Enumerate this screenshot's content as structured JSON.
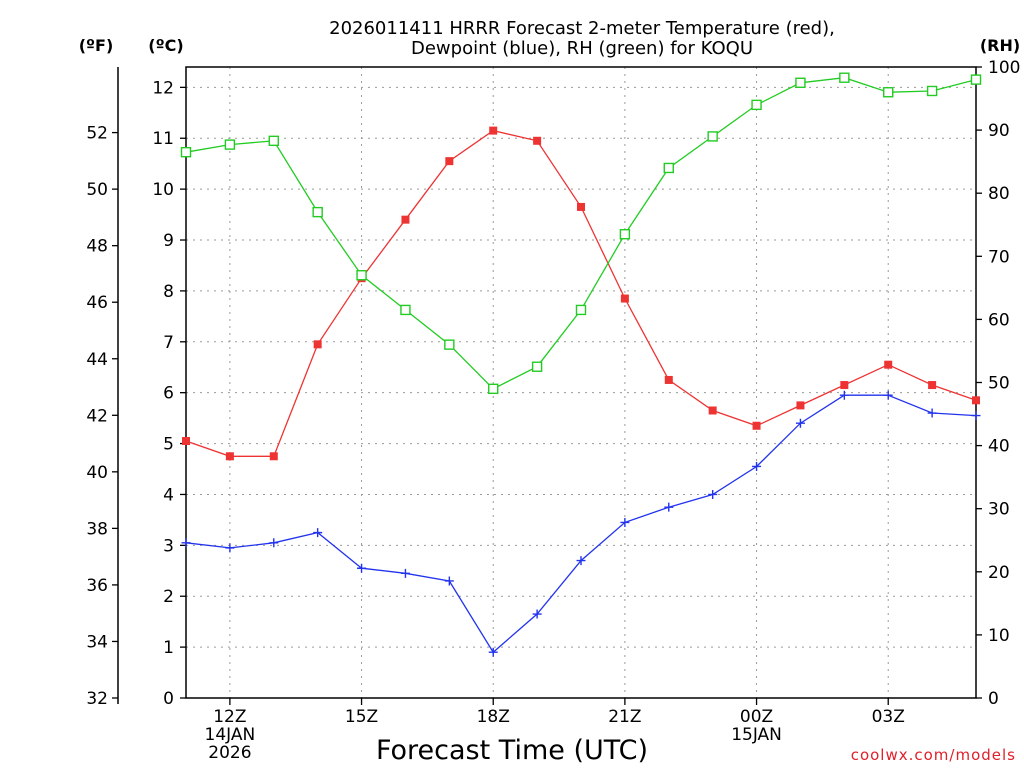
{
  "chart_data": {
    "type": "line",
    "title_lines": [
      "2026011411 HRRR Forecast 2-meter Temperature (red),",
      "Dewpoint (blue), RH (green) for KOQU"
    ],
    "xlabel": "Forecast Time (UTC)",
    "credit": "coolwx.com/models",
    "units": {
      "fahrenheit": "(ºF)",
      "celsius": "(ºC)",
      "rh": "(RH)"
    },
    "x_range_hours": [
      11,
      29
    ],
    "x_ticks": [
      {
        "hour": 12,
        "lines": [
          "12Z",
          "14JAN",
          "2026"
        ]
      },
      {
        "hour": 15,
        "lines": [
          "15Z"
        ]
      },
      {
        "hour": 18,
        "lines": [
          "18Z"
        ]
      },
      {
        "hour": 21,
        "lines": [
          "21Z"
        ]
      },
      {
        "hour": 24,
        "lines": [
          "00Z",
          "15JAN"
        ]
      },
      {
        "hour": 27,
        "lines": [
          "03Z"
        ]
      }
    ],
    "celsius_axis": {
      "range": [
        0,
        12.4
      ],
      "ticks": [
        0,
        1,
        2,
        3,
        4,
        5,
        6,
        7,
        8,
        9,
        10,
        11,
        12
      ]
    },
    "fahrenheit_axis": {
      "ticks": [
        32,
        34,
        36,
        38,
        40,
        42,
        44,
        46,
        48,
        50,
        52
      ]
    },
    "rh_axis": {
      "range": [
        0,
        100
      ],
      "ticks": [
        0,
        10,
        20,
        30,
        40,
        50,
        60,
        70,
        80,
        90,
        100
      ]
    },
    "series": [
      {
        "name": "Temperature",
        "color": "#ee3333",
        "marker": "filled-square",
        "axis": "celsius",
        "x": [
          11,
          12,
          13,
          14,
          15,
          16,
          17,
          18,
          19,
          20,
          21,
          22,
          23,
          24,
          25,
          26,
          27,
          28,
          29
        ],
        "values": [
          5.05,
          4.75,
          4.75,
          6.95,
          8.25,
          9.4,
          10.55,
          11.15,
          10.95,
          9.65,
          7.85,
          6.25,
          5.65,
          5.35,
          5.75,
          6.15,
          6.55,
          6.15,
          5.85
        ]
      },
      {
        "name": "Dewpoint",
        "color": "#2233ee",
        "marker": "plus",
        "axis": "celsius",
        "x": [
          11,
          12,
          13,
          14,
          15,
          16,
          17,
          18,
          19,
          20,
          21,
          22,
          23,
          24,
          25,
          26,
          27,
          28,
          29
        ],
        "values": [
          3.05,
          2.95,
          3.05,
          3.25,
          2.55,
          2.45,
          2.3,
          0.9,
          1.65,
          2.7,
          3.45,
          3.75,
          4.0,
          4.55,
          5.4,
          5.95,
          5.95,
          5.6,
          5.55
        ]
      },
      {
        "name": "RH",
        "color": "#22cc22",
        "marker": "open-square",
        "axis": "rh",
        "x": [
          11,
          12,
          13,
          14,
          15,
          16,
          17,
          18,
          19,
          20,
          21,
          22,
          23,
          24,
          25,
          26,
          27,
          28,
          29
        ],
        "values": [
          86.5,
          87.7,
          88.3,
          77.0,
          67.0,
          61.5,
          56.0,
          49.0,
          52.5,
          61.5,
          73.5,
          84.0,
          89.0,
          94.0,
          97.5,
          98.3,
          96.0,
          96.2,
          98.0
        ]
      }
    ]
  }
}
